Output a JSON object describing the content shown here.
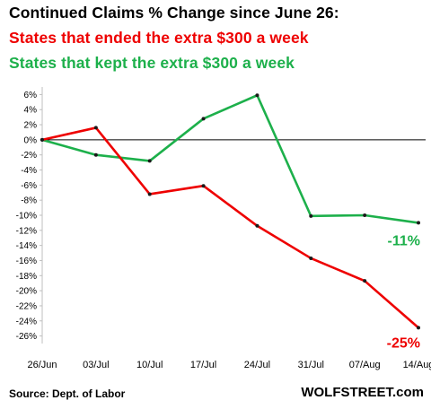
{
  "title_lines": [
    "Continued  Claims % Change since June 26:",
    "States that ended the extra $300 a week",
    "States that kept the extra $300 a week"
  ],
  "colors": {
    "ended": "#ee0000",
    "kept": "#1db04b",
    "axis": "#000000",
    "grid": "#d9d9d9"
  },
  "footer": {
    "source": "Source: Dept. of Labor",
    "brand": "WOLFSTREET.com"
  },
  "chart_data": {
    "type": "line",
    "title": "Continued  Claims % Change since June 26:",
    "categories": [
      "26/Jun",
      "03/Jul",
      "10/Jul",
      "17/Jul",
      "24/Jul",
      "31/Jul",
      "07/Aug",
      "14/Aug"
    ],
    "series": [
      {
        "name": "States that ended the extra $300 a week",
        "color": "#ee0000",
        "values": [
          0,
          1.6,
          -7.2,
          -6.1,
          -11.4,
          -15.7,
          -18.7,
          -24.9
        ]
      },
      {
        "name": "States that kept the extra $300 a week",
        "color": "#1db04b",
        "values": [
          0,
          -2.0,
          -2.8,
          2.8,
          5.9,
          -10.1,
          -10.0,
          -11.0
        ]
      }
    ],
    "end_labels": [
      "-25%",
      "-11%"
    ],
    "y_ticks": [
      6,
      4,
      2,
      0,
      -2,
      -4,
      -6,
      -8,
      -10,
      -12,
      -14,
      -16,
      -18,
      -20,
      -22,
      -24,
      -26
    ],
    "y_tick_format": "%",
    "ylim": [
      -27,
      7
    ],
    "grid": false,
    "legend": "none (series named in title lines)"
  }
}
